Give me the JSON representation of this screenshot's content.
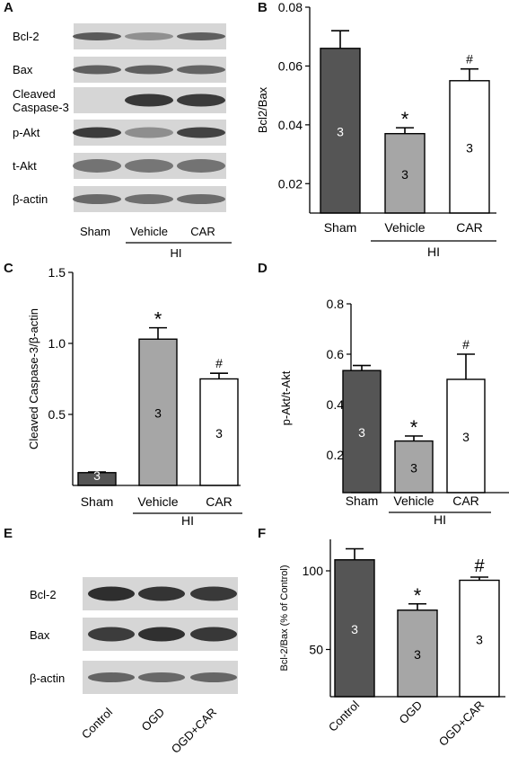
{
  "panels": {
    "A": {
      "letter": "A",
      "rows": [
        "Bcl-2",
        "Bax",
        "Cleaved Caspase-3",
        "p-Akt",
        "t-Akt",
        "β-actin"
      ],
      "lanes": [
        "Sham",
        "Vehicle",
        "CAR"
      ],
      "group_label": "HI"
    },
    "E": {
      "letter": "E",
      "rows": [
        "Bcl-2",
        "Bax",
        "β-actin"
      ],
      "lanes": [
        "Control",
        "OGD",
        "OGD+CAR"
      ]
    }
  },
  "chart_data": [
    {
      "panel": "B",
      "type": "bar",
      "ylabel": "Bcl2/Bax",
      "categories": [
        "Sham",
        "Vehicle",
        "CAR"
      ],
      "values": [
        0.066,
        0.037,
        0.055
      ],
      "errors": [
        0.006,
        0.002,
        0.004
      ],
      "ylim": [
        0.01,
        0.08
      ],
      "yticks": [
        "0.02",
        "0.04",
        "0.06",
        "0.08"
      ],
      "ytick_values": [
        0.02,
        0.04,
        0.06,
        0.08
      ],
      "n_labels": [
        "3",
        "3",
        "3"
      ],
      "markers": [
        "",
        "*",
        "#"
      ],
      "group_label": "HI",
      "colors": [
        "#555555",
        "#a6a6a6",
        "#ffffff"
      ]
    },
    {
      "panel": "C",
      "type": "bar",
      "ylabel": "Cleaved Caspase-3/β-actin",
      "categories": [
        "Sham",
        "Vehicle",
        "CAR"
      ],
      "values": [
        0.09,
        1.03,
        0.75
      ],
      "errors": [
        0.005,
        0.08,
        0.04
      ],
      "ylim": [
        0,
        1.5
      ],
      "yticks": [
        "0.5",
        "1.0",
        "1.5"
      ],
      "ytick_values": [
        0.5,
        1.0,
        1.5
      ],
      "n_labels": [
        "3",
        "3",
        "3"
      ],
      "markers": [
        "",
        "*",
        "#"
      ],
      "group_label": "HI",
      "colors": [
        "#555555",
        "#a6a6a6",
        "#ffffff"
      ]
    },
    {
      "panel": "D",
      "type": "bar",
      "ylabel": "p-Akt/t-Akt",
      "categories": [
        "Sham",
        "Vehicle",
        "CAR"
      ],
      "values": [
        0.535,
        0.255,
        0.5
      ],
      "errors": [
        0.02,
        0.02,
        0.1
      ],
      "ylim": [
        0.05,
        0.8
      ],
      "yticks": [
        "0.2",
        "0.4",
        "0.6",
        "0.8"
      ],
      "ytick_values": [
        0.2,
        0.4,
        0.6,
        0.8
      ],
      "n_labels": [
        "3",
        "3",
        "3"
      ],
      "markers": [
        "",
        "*",
        "#"
      ],
      "group_label": "HI",
      "colors": [
        "#555555",
        "#a6a6a6",
        "#ffffff"
      ]
    },
    {
      "panel": "F",
      "type": "bar",
      "ylabel": "Bcl-2/Bax (% of Control)",
      "categories": [
        "Control",
        "OGD",
        "OGD+CAR"
      ],
      "values": [
        107,
        75,
        94
      ],
      "errors": [
        7,
        4,
        2
      ],
      "ylim": [
        20,
        120
      ],
      "yticks": [
        "50",
        "100"
      ],
      "ytick_values": [
        50,
        100
      ],
      "n_labels": [
        "3",
        "3",
        "3"
      ],
      "markers": [
        "",
        "*",
        "#"
      ],
      "group_label": "",
      "colors": [
        "#555555",
        "#a6a6a6",
        "#ffffff"
      ]
    }
  ]
}
